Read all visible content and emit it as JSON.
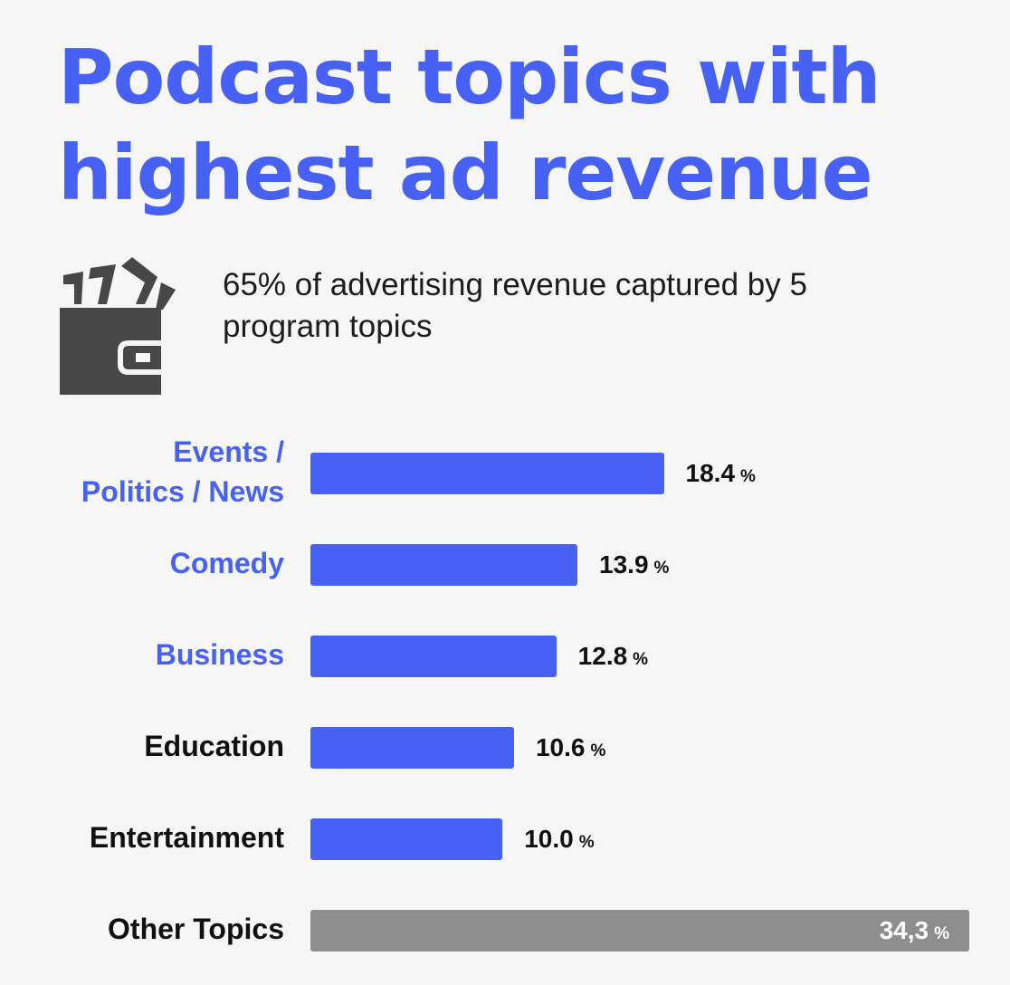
{
  "colors": {
    "accent": "#4761f4",
    "dark": "#111111",
    "other_bar": "#8e8e8e",
    "icon": "#474747"
  },
  "header": {
    "title_lines": [
      "Podcast topics with",
      "highest ad revenue"
    ],
    "subtitle_lines": [
      "65% of advertising revenue captured by 5",
      "program topics"
    ],
    "icon": "wallet-icon"
  },
  "chart_data": {
    "type": "bar",
    "orientation": "horizontal",
    "title": "Podcast topics with highest ad revenue",
    "subtitle": "65% of advertising revenue captured by 5 program topics",
    "xmax": 34.3,
    "unit": "%",
    "categories": [
      {
        "label_lines": [
          "Events /",
          "Politics / News"
        ],
        "value": 18.4,
        "value_text": "18.4",
        "highlight": true
      },
      {
        "label_lines": [
          "Comedy"
        ],
        "value": 13.9,
        "value_text": "13.9",
        "highlight": true
      },
      {
        "label_lines": [
          "Business"
        ],
        "value": 12.8,
        "value_text": "12.8",
        "highlight": true
      },
      {
        "label_lines": [
          "Education"
        ],
        "value": 10.6,
        "value_text": "10.6",
        "highlight": false
      },
      {
        "label_lines": [
          "Entertainment"
        ],
        "value": 10.0,
        "value_text": "10.0",
        "highlight": false
      },
      {
        "label_lines": [
          "Other Topics"
        ],
        "value": 34.3,
        "value_text": "34,3",
        "highlight": false,
        "other": true
      }
    ]
  }
}
